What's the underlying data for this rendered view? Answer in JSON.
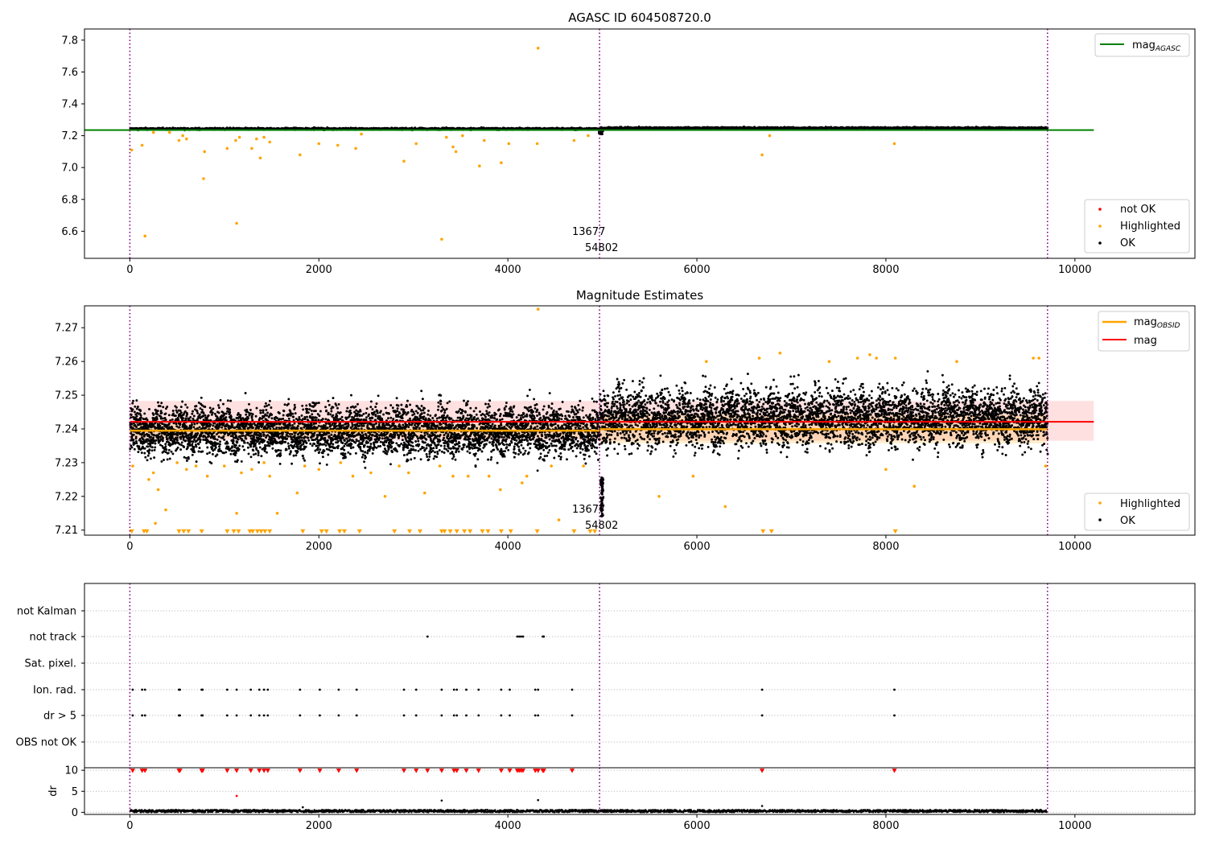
{
  "chart_data": [
    {
      "type": "scatter",
      "title": "AGASC ID 604508720.0",
      "xlim": [
        -480,
        11270
      ],
      "ylim": [
        6.43,
        7.87
      ],
      "xticks": [
        0,
        2000,
        4000,
        6000,
        8000,
        10000
      ],
      "yticks": [
        6.6,
        6.8,
        7.0,
        7.2,
        7.4,
        7.6,
        7.8
      ],
      "ytick_labels": [
        "6.6",
        "6.8",
        "7.0",
        "7.2",
        "7.4",
        "7.6",
        "7.8"
      ],
      "obs_boundaries": [
        0,
        4970,
        9710
      ],
      "reference_lines": [
        {
          "name": "mag$_{AGASC}$",
          "label_main": "mag",
          "label_sub": "AGASC",
          "y": 7.235,
          "x": [
            -480,
            10200
          ],
          "color": "#008000"
        }
      ],
      "series": [
        {
          "name": "OK",
          "color": "#000000",
          "description": "dense band",
          "segments": [
            {
              "x": [
                0,
                4970
              ],
              "center": 7.243,
              "spread": 0.006
            },
            {
              "x": [
                4970,
                9710
              ],
              "center": 7.248,
              "spread": 0.006
            }
          ]
        },
        {
          "name": "Highlighted",
          "color": "#ffa500",
          "points": [
            [
              20,
              7.11
            ],
            [
              130,
              7.14
            ],
            [
              160,
              6.57
            ],
            [
              250,
              7.22
            ],
            [
              420,
              7.22
            ],
            [
              520,
              7.17
            ],
            [
              560,
              7.2
            ],
            [
              600,
              7.18
            ],
            [
              780,
              6.93
            ],
            [
              790,
              7.1
            ],
            [
              1030,
              7.12
            ],
            [
              1120,
              7.17
            ],
            [
              1130,
              6.65
            ],
            [
              1160,
              7.19
            ],
            [
              1290,
              7.12
            ],
            [
              1340,
              7.18
            ],
            [
              1380,
              7.06
            ],
            [
              1420,
              7.19
            ],
            [
              1480,
              7.16
            ],
            [
              1800,
              7.08
            ],
            [
              2000,
              7.15
            ],
            [
              2200,
              7.14
            ],
            [
              2390,
              7.12
            ],
            [
              2450,
              7.21
            ],
            [
              2900,
              7.04
            ],
            [
              3030,
              7.15
            ],
            [
              3300,
              6.55
            ],
            [
              3350,
              7.19
            ],
            [
              3420,
              7.13
            ],
            [
              3450,
              7.1
            ],
            [
              3520,
              7.2
            ],
            [
              3700,
              7.01
            ],
            [
              3750,
              7.17
            ],
            [
              3930,
              7.03
            ],
            [
              4010,
              7.15
            ],
            [
              4310,
              7.15
            ],
            [
              4320,
              7.75
            ],
            [
              4700,
              7.17
            ],
            [
              4850,
              7.2
            ],
            [
              6690,
              7.08
            ],
            [
              6770,
              7.2
            ],
            [
              8090,
              7.15
            ]
          ]
        },
        {
          "name": "not OK",
          "color": "#ff0000",
          "points": []
        }
      ],
      "annotations": [
        {
          "text": "13677",
          "x": 4680,
          "y": 6.58
        },
        {
          "text": "54802",
          "x": 4810,
          "y": 6.48
        }
      ],
      "legend_upper": "top-right",
      "legend_lower": "bottom-right"
    },
    {
      "type": "scatter",
      "title": "Magnitude Estimates",
      "xlim": [
        -480,
        11270
      ],
      "ylim": [
        7.2085,
        7.2765
      ],
      "xticks": [
        0,
        2000,
        4000,
        6000,
        8000,
        10000
      ],
      "yticks": [
        7.21,
        7.22,
        7.23,
        7.24,
        7.25,
        7.26,
        7.27
      ],
      "ytick_labels": [
        "7.21",
        "7.22",
        "7.23",
        "7.24",
        "7.25",
        "7.26",
        "7.27"
      ],
      "obs_boundaries": [
        0,
        4970,
        9710
      ],
      "reference_lines": [
        {
          "name": "mag",
          "y": 7.2421,
          "band": [
            7.2365,
            7.2483
          ],
          "x": [
            0,
            10200
          ],
          "color": "#ff0000"
        },
        {
          "name": "mag$_{OBSID}$",
          "label_main": "mag",
          "label_sub": "OBSID",
          "color": "#ffa500",
          "segments": [
            {
              "x": [
                0,
                4970
              ],
              "y": 7.2395,
              "band": [
                7.2375,
                7.2415
              ]
            },
            {
              "x": [
                4970,
                9710
              ],
              "y": 7.2399,
              "band": [
                7.2357,
                7.2442
              ]
            }
          ]
        }
      ],
      "series": [
        {
          "name": "OK",
          "color": "#000000",
          "segments": [
            {
              "x": [
                0,
                4970
              ],
              "center": 7.2395,
              "spread": 0.0048
            },
            {
              "x": [
                4970,
                9710
              ],
              "center": 7.2435,
              "spread": 0.0055
            }
          ],
          "dip": {
            "x": 4990,
            "y_range": [
              7.214,
              7.226
            ]
          }
        },
        {
          "name": "Highlighted",
          "color": "#ffa500",
          "points": [
            [
              30,
              7.229
            ],
            [
              200,
              7.225
            ],
            [
              250,
              7.227
            ],
            [
              270,
              7.212
            ],
            [
              300,
              7.222
            ],
            [
              380,
              7.216
            ],
            [
              500,
              7.23
            ],
            [
              600,
              7.228
            ],
            [
              700,
              7.229
            ],
            [
              820,
              7.226
            ],
            [
              1000,
              7.229
            ],
            [
              1130,
              7.215
            ],
            [
              1180,
              7.227
            ],
            [
              1290,
              7.228
            ],
            [
              1420,
              7.23
            ],
            [
              1480,
              7.226
            ],
            [
              1560,
              7.215
            ],
            [
              1770,
              7.221
            ],
            [
              1850,
              7.229
            ],
            [
              2000,
              7.228
            ],
            [
              2230,
              7.23
            ],
            [
              2360,
              7.226
            ],
            [
              2550,
              7.227
            ],
            [
              2700,
              7.22
            ],
            [
              2850,
              7.229
            ],
            [
              2950,
              7.227
            ],
            [
              3120,
              7.221
            ],
            [
              3280,
              7.229
            ],
            [
              3420,
              7.226
            ],
            [
              3580,
              7.226
            ],
            [
              3800,
              7.226
            ],
            [
              3920,
              7.222
            ],
            [
              4150,
              7.224
            ],
            [
              4200,
              7.226
            ],
            [
              4320,
              7.2755
            ],
            [
              4460,
              7.229
            ],
            [
              4540,
              7.213
            ],
            [
              4800,
              7.229
            ],
            [
              5600,
              7.22
            ],
            [
              5960,
              7.226
            ],
            [
              6100,
              7.26
            ],
            [
              6300,
              7.217
            ],
            [
              6660,
              7.261
            ],
            [
              6880,
              7.2625
            ],
            [
              7400,
              7.26
            ],
            [
              7700,
              7.261
            ],
            [
              7830,
              7.262
            ],
            [
              7900,
              7.261
            ],
            [
              8100,
              7.261
            ],
            [
              8000,
              7.228
            ],
            [
              8300,
              7.223
            ],
            [
              8750,
              7.26
            ],
            [
              9560,
              7.261
            ],
            [
              9620,
              7.261
            ],
            [
              9690,
              7.229
            ]
          ]
        },
        {
          "name": "Highlighted (off-scale)",
          "color": "#ffa500",
          "marker": "triangle-down",
          "y": 7.2095,
          "x": [
            20,
            150,
            180,
            520,
            570,
            620,
            760,
            1030,
            1100,
            1150,
            1270,
            1300,
            1350,
            1390,
            1430,
            1480,
            1830,
            2030,
            2080,
            2220,
            2270,
            2430,
            2800,
            2960,
            3070,
            3300,
            3330,
            3390,
            3460,
            3540,
            3600,
            3730,
            3790,
            3930,
            4030,
            4310,
            4700,
            4870,
            4920,
            6700,
            6790,
            8100
          ]
        }
      ],
      "annotations": [
        {
          "text": "13677",
          "x": 4680,
          "y": 7.2125
        },
        {
          "text": "54802",
          "x": 4810,
          "y": 7.2097
        }
      ],
      "legend_upper": "top-right",
      "legend_lower": "bottom-right"
    },
    {
      "type": "scatter",
      "title": "",
      "xlim": [
        -480,
        11270
      ],
      "categories": [
        "not Kalman",
        "not track",
        "Sat. pixel.",
        "Ion. rad.",
        "dr > 5",
        "OBS not OK"
      ],
      "obs_boundaries": [
        0,
        4970,
        9710
      ],
      "flags": {
        "not Kalman": [],
        "not track": [
          3150,
          4100,
          4120,
          4140,
          4160,
          4370,
          4380
        ],
        "Sat. pixel.": [],
        "Ion. rad.": [
          30,
          130,
          160,
          520,
          530,
          760,
          770,
          1030,
          1130,
          1280,
          1370,
          1420,
          1460,
          1800,
          2010,
          2210,
          2400,
          2900,
          3030,
          3300,
          3430,
          3460,
          3560,
          3690,
          3930,
          4020,
          4290,
          4320,
          4680,
          6690,
          8090
        ],
        "dr > 5": [
          30,
          130,
          160,
          520,
          530,
          760,
          770,
          1030,
          1130,
          1280,
          1370,
          1420,
          1460,
          1800,
          2010,
          2210,
          2400,
          2900,
          3030,
          3300,
          3430,
          3460,
          3560,
          3690,
          3930,
          4020,
          4290,
          4320,
          4680,
          6690,
          8090
        ],
        "OBS not OK": []
      }
    },
    {
      "type": "scatter",
      "title": "",
      "xlim": [
        -480,
        11270
      ],
      "ylim": [
        -0.5,
        10.6
      ],
      "yticks": [
        0,
        5,
        10
      ],
      "ytick_labels": [
        "0",
        "5",
        "10"
      ],
      "xticks": [
        0,
        2000,
        4000,
        6000,
        8000,
        10000
      ],
      "ylabel": "dr",
      "obs_boundaries": [
        0,
        4970,
        9710
      ],
      "series": [
        {
          "name": "OK",
          "color": "#000000",
          "band": [
            0,
            0.6
          ],
          "outliers": [
            [
              1830,
              1.2
            ],
            [
              3300,
              2.8
            ],
            [
              4320,
              2.9
            ],
            [
              6690,
              1.5
            ]
          ]
        },
        {
          "name": "not OK",
          "color": "#ff0000",
          "y": 10,
          "x": [
            30,
            130,
            160,
            520,
            530,
            760,
            770,
            1030,
            1130,
            1280,
            1370,
            1420,
            1460,
            1800,
            2010,
            2210,
            2400,
            2900,
            3030,
            3150,
            3300,
            3430,
            3460,
            3560,
            3690,
            3930,
            4020,
            4100,
            4120,
            4140,
            4160,
            4290,
            4320,
            4370,
            4380,
            4680,
            6690,
            8090
          ],
          "outliers": [
            [
              1130,
              3.9
            ]
          ]
        }
      ]
    }
  ],
  "legends": {
    "top_upper": [
      {
        "label_main": "mag",
        "label_sub": "AGASC",
        "color": "#008000"
      }
    ],
    "top_lower": [
      {
        "label": "not OK",
        "color": "#ff0000"
      },
      {
        "label": "Highlighted",
        "color": "#ffa500"
      },
      {
        "label": "OK",
        "color": "#000000"
      }
    ],
    "mid_upper": [
      {
        "label_main": "mag",
        "label_sub": "OBSID",
        "color": "#ffa500"
      },
      {
        "label": "mag",
        "color": "#ff0000"
      }
    ],
    "mid_lower": [
      {
        "label": "Highlighted",
        "color": "#ffa500"
      },
      {
        "label": "OK",
        "color": "#000000"
      }
    ]
  }
}
